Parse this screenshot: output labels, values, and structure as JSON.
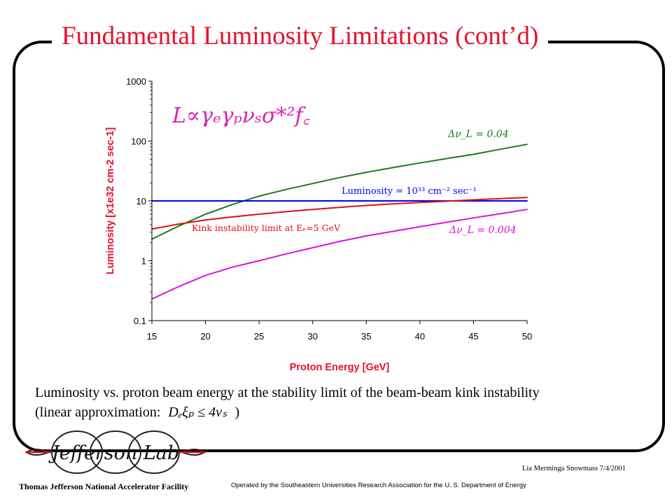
{
  "slide": {
    "title": "Fundamental Luminosity Limitations (cont’d)",
    "caption_line1": "Luminosity vs. proton beam energy at the stability limit of the beam-beam kink instability",
    "caption_line2_prefix": "(linear approximation:",
    "caption_equation": "Dₑξₚ ≤ 4νₛ",
    "caption_line2_suffix": ")",
    "author": "Lia Merminga Snowmass 7/4/2001",
    "footer_left": "Thomas Jefferson National Accelerator Facility",
    "footer_right": "Operated by the Southeastern Universities Research Association for the U. S. Department of Energy",
    "logo_text": "Jefferson Lab"
  },
  "colors": {
    "title": "#e8102d",
    "axis_label": "#e8102d",
    "formula": "#e01fb0",
    "green": "#1b7a1b",
    "blue": "#0000ff",
    "red": "#dd1111",
    "magenta": "#dd11dd",
    "plot_bg": "#ffffff"
  },
  "chart_data": {
    "type": "line",
    "xlabel": "Proton Energy [GeV]",
    "ylabel": "Luminosity [x1e32 cm-2 sec-1]",
    "xlim": [
      15,
      50
    ],
    "ylim": [
      0.1,
      1000
    ],
    "yscale": "log",
    "x_ticks": [
      "15",
      "20",
      "25",
      "30",
      "35",
      "40",
      "45",
      "50"
    ],
    "y_ticks": [
      "0.1",
      "1",
      "10",
      "100",
      "1000"
    ],
    "formula": "L∝γₑγₚνₛσ*²f꜀",
    "series": [
      {
        "name": "Δν_L = 0.04",
        "color": "green",
        "x": [
          15,
          17.5,
          20,
          22.5,
          25,
          27.5,
          30,
          32.5,
          35,
          37.5,
          40,
          42.5,
          45,
          47.5,
          50
        ],
        "y": [
          2.3,
          3.8,
          6.0,
          8.7,
          12.0,
          15.5,
          19.5,
          24.5,
          30.0,
          36.0,
          43.0,
          51.0,
          60.0,
          73.0,
          88.0
        ]
      },
      {
        "name": "Luminosity = 10³³ cm⁻² sec⁻¹",
        "color": "blue",
        "x": [
          15,
          50
        ],
        "y": [
          10,
          10
        ]
      },
      {
        "name": "Kink instability limit at Eₑ=5 GeV",
        "color": "red",
        "x": [
          15,
          17.5,
          20,
          22.5,
          25,
          27.5,
          30,
          32.5,
          35,
          37.5,
          40,
          42.5,
          45,
          47.5,
          50
        ],
        "y": [
          3.4,
          4.1,
          4.8,
          5.4,
          6.0,
          6.6,
          7.2,
          7.8,
          8.4,
          8.9,
          9.4,
          9.9,
          10.4,
          10.9,
          11.4
        ]
      },
      {
        "name": "Δν_L = 0.004",
        "color": "magenta",
        "x": [
          15,
          17.5,
          20,
          22.5,
          25,
          27.5,
          30,
          32.5,
          35,
          37.5,
          40,
          42.5,
          45,
          47.5,
          50
        ],
        "y": [
          0.23,
          0.37,
          0.57,
          0.78,
          1.0,
          1.3,
          1.65,
          2.1,
          2.6,
          3.1,
          3.7,
          4.4,
          5.2,
          6.1,
          7.2
        ]
      }
    ],
    "annotations": [
      {
        "text": "Δν_L = 0.04",
        "color": "green"
      },
      {
        "text": "Luminosity = 10³³ cm⁻² sec⁻¹",
        "color": "blue"
      },
      {
        "text": "Kink instability limit at Eₑ=5 GeV",
        "color": "red"
      },
      {
        "text": "Δν_L = 0.004",
        "color": "magenta"
      }
    ]
  }
}
